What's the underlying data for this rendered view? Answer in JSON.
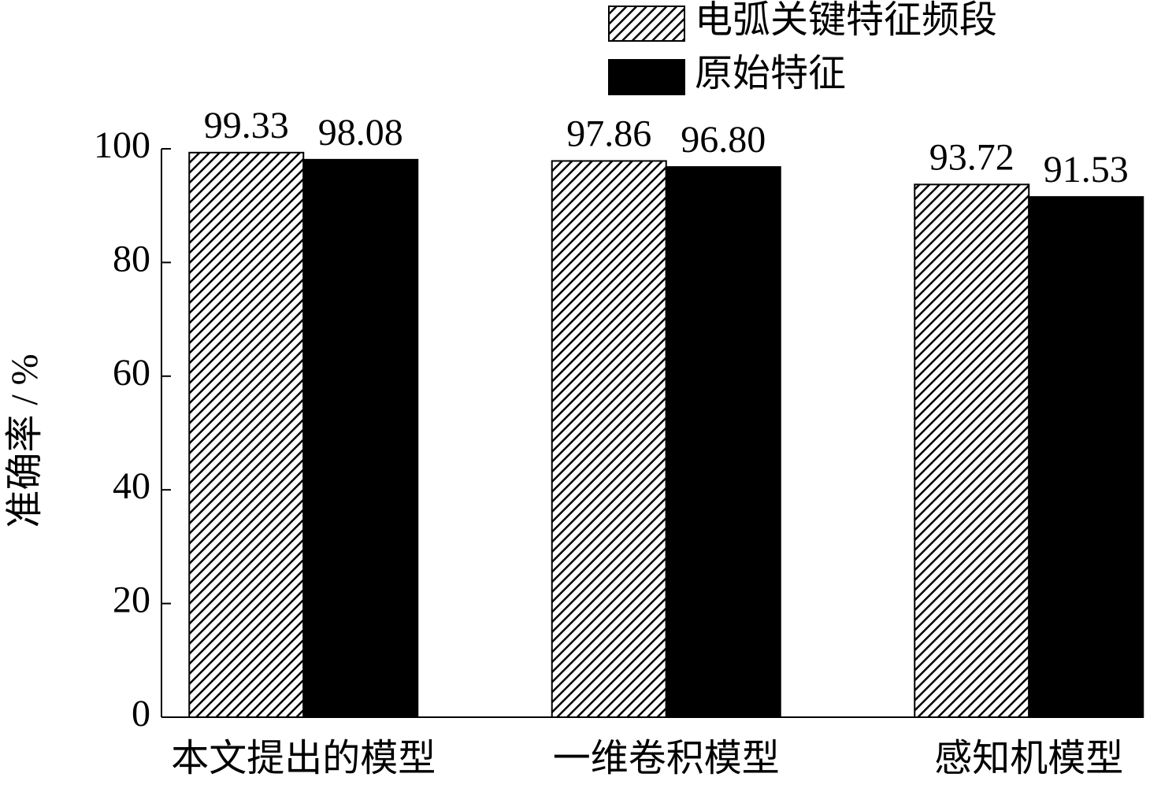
{
  "chart_data": {
    "type": "bar",
    "y_label": "准确率 / %",
    "categories": [
      "本文提出的模型",
      "一维卷积模型",
      "感知机模型"
    ],
    "series": [
      {
        "name": "电弧关键特征频段",
        "color": "#000000",
        "hatch": true,
        "values": [
          99.33,
          97.86,
          93.72
        ],
        "value_labels": [
          "99.33",
          "97.86",
          "93.72"
        ]
      },
      {
        "name": "原始特征",
        "color": "#000000",
        "hatch": false,
        "values": [
          98.08,
          96.8,
          91.53
        ],
        "value_labels": [
          "98.08",
          "96.80",
          "91.53"
        ]
      }
    ],
    "ylim": [
      0,
      100
    ],
    "yticks": [
      0,
      20,
      40,
      60,
      80,
      100
    ],
    "grid": false,
    "legend": "top-right"
  }
}
